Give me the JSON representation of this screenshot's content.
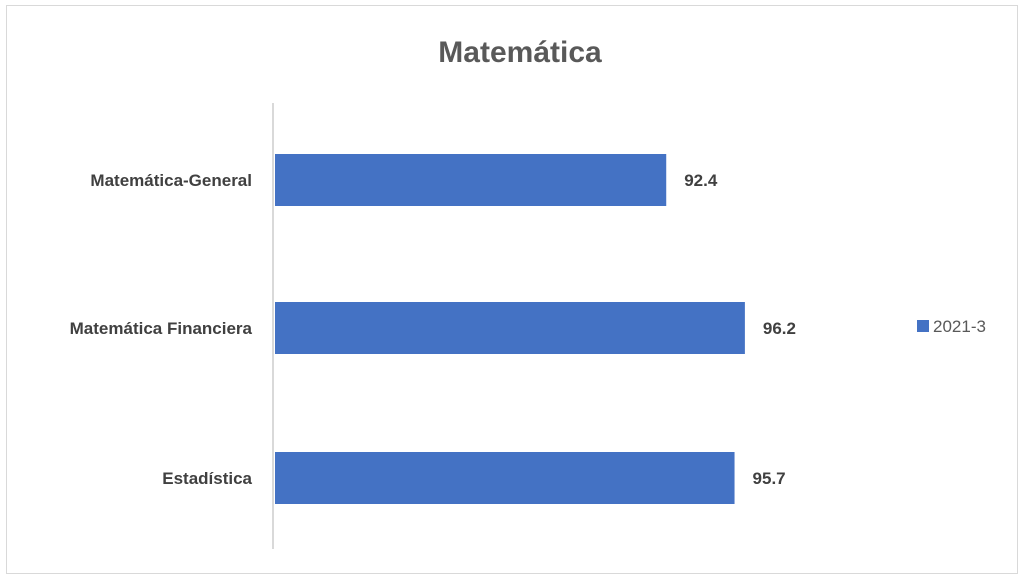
{
  "chart_data": {
    "type": "bar",
    "orientation": "horizontal",
    "title": "Matemática",
    "categories": [
      "Matemática-General",
      "Matemática Financiera",
      "Estadística"
    ],
    "series": [
      {
        "name": "2021-3",
        "values": [
          92.4,
          96.2,
          95.7
        ],
        "color": "#4472c4"
      }
    ],
    "xlim": [
      73.5,
      100
    ],
    "grid": false,
    "legend": "right"
  }
}
